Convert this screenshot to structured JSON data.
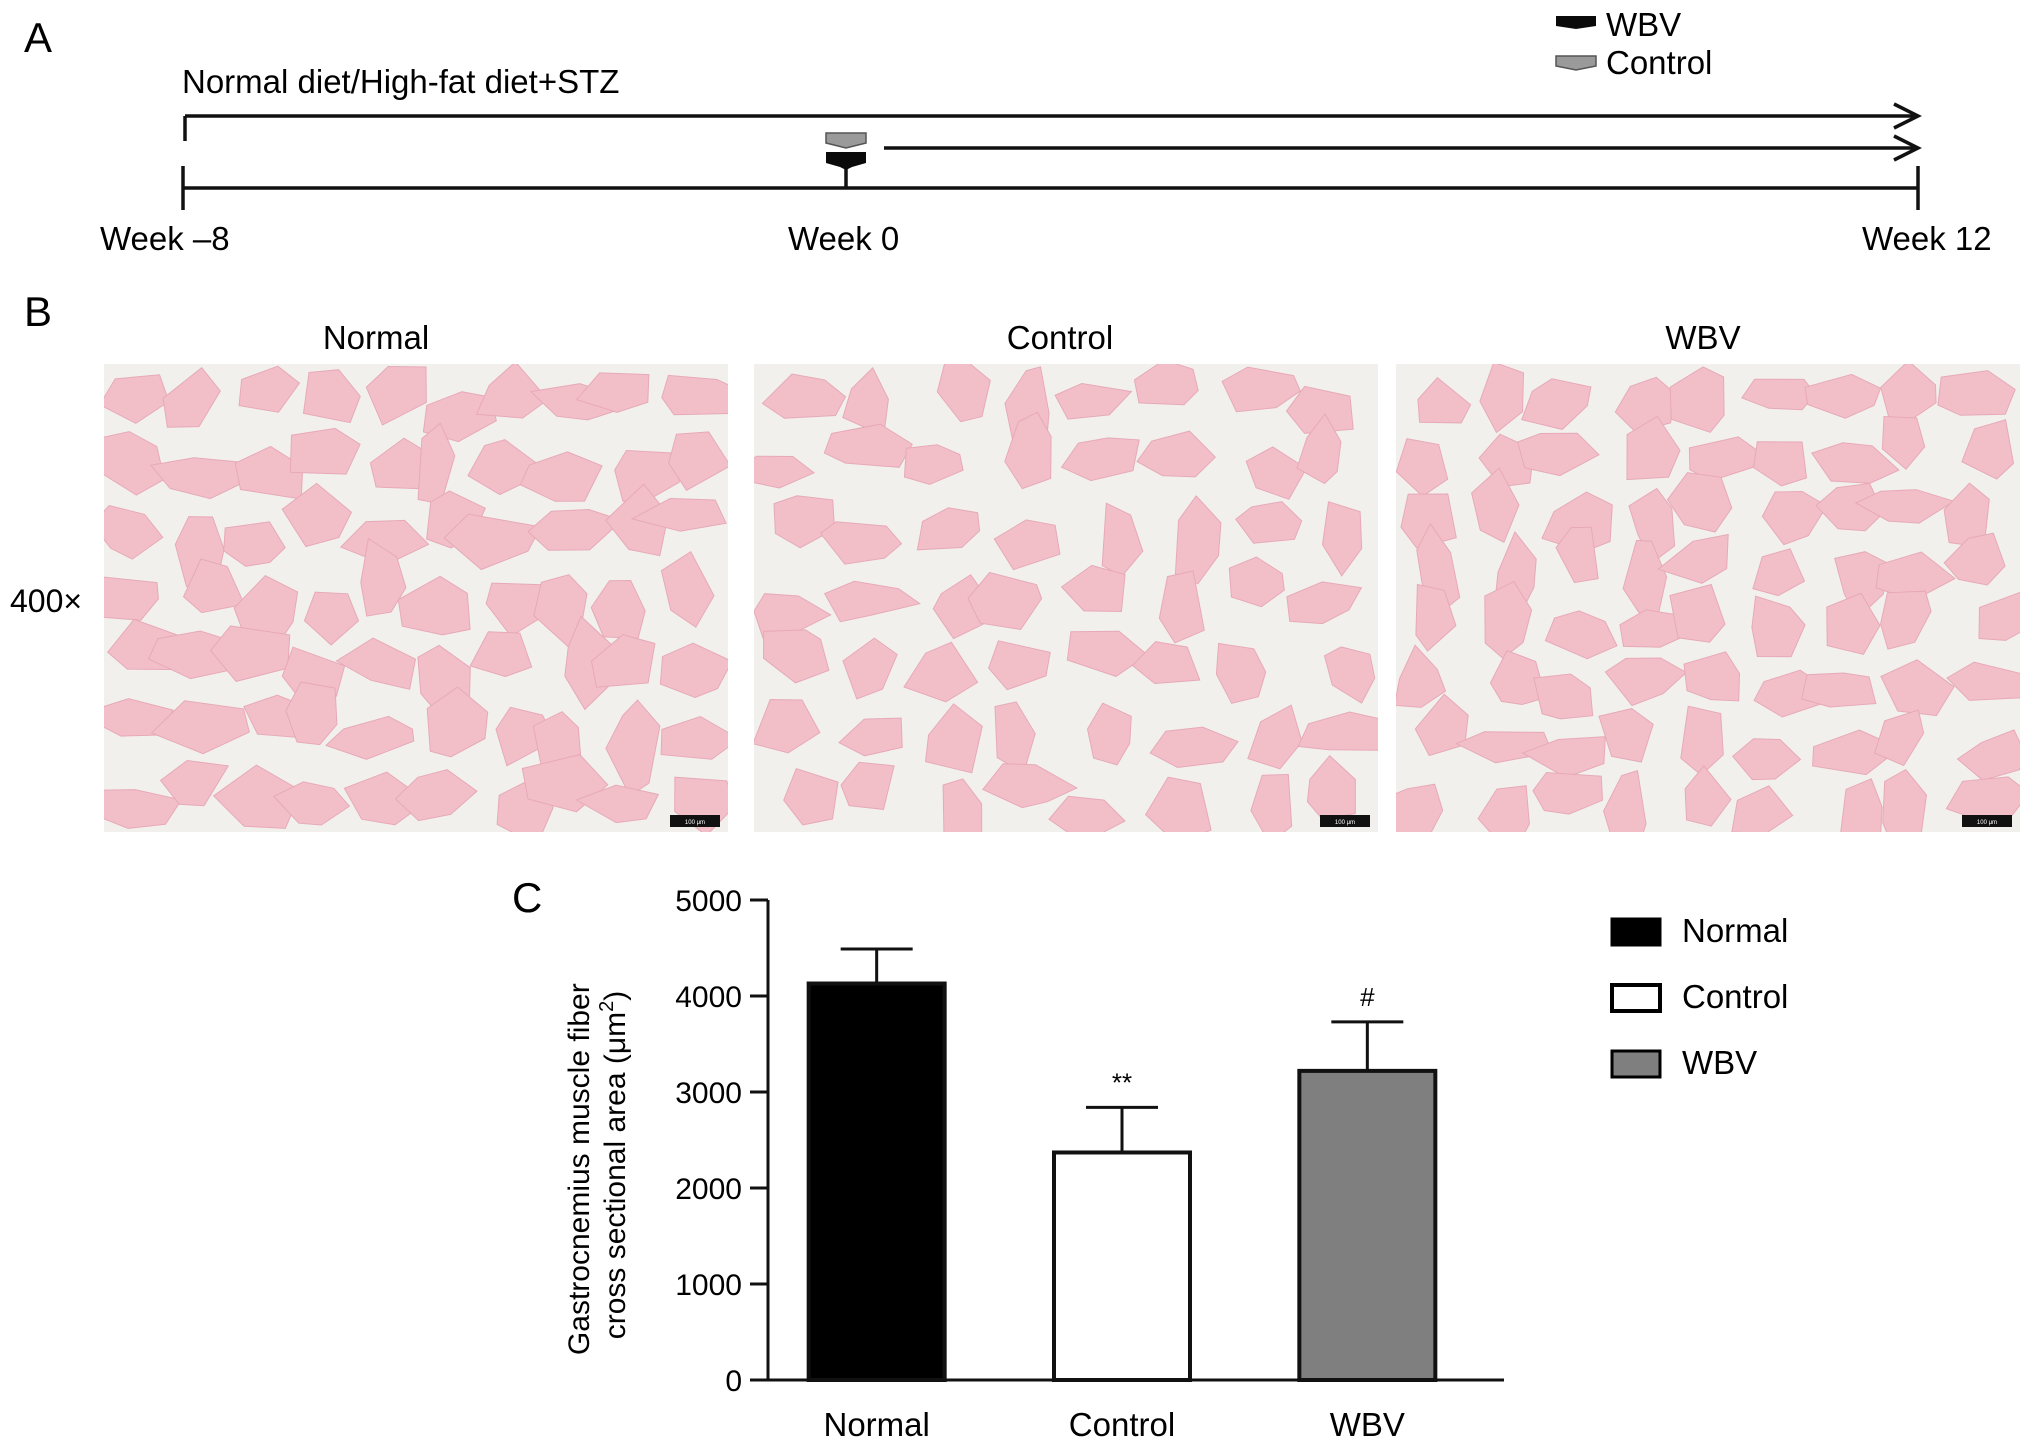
{
  "panels": {
    "a": "A",
    "b": "B",
    "c": "C"
  },
  "timeline": {
    "diet_label": "Normal diet/High-fat diet+STZ",
    "week_start": "Week –8",
    "week_mid": "Week 0",
    "week_end": "Week 12",
    "legend": [
      {
        "label": "WBV",
        "color": "#000000"
      },
      {
        "label": "Control",
        "color": "#9a9a9a"
      }
    ]
  },
  "micrographs": {
    "magnification": "400×",
    "titles": [
      "Normal",
      "Control",
      "WBV"
    ],
    "fiber_color": "#f2bfc8",
    "background_color": "#f1f0ec",
    "scale_label": "100 μm"
  },
  "chart_data": {
    "type": "bar",
    "categories": [
      "Normal",
      "Control",
      "WBV"
    ],
    "series": [
      {
        "values": [
          4130,
          2370,
          3220
        ],
        "errors": [
          360,
          470,
          510
        ],
        "colors": [
          "#000000",
          "#ffffff",
          "#7f7f7f"
        ],
        "annotations": [
          "",
          "**",
          "#"
        ]
      }
    ],
    "ylabel_line1": "Gastrocnemius muscle fiber",
    "ylabel_line2": "cross sectional area (μm",
    "ylabel_sup": "2",
    "ylabel_end": ")",
    "ylim": [
      0,
      5000
    ],
    "yticks": [
      "0",
      "1000",
      "2000",
      "3000",
      "4000",
      "5000"
    ],
    "legend": [
      {
        "label": "Normal",
        "color": "#000000"
      },
      {
        "label": "Control",
        "color": "#ffffff"
      },
      {
        "label": "WBV",
        "color": "#7f7f7f"
      }
    ],
    "legend_position": "right",
    "grid": false
  }
}
